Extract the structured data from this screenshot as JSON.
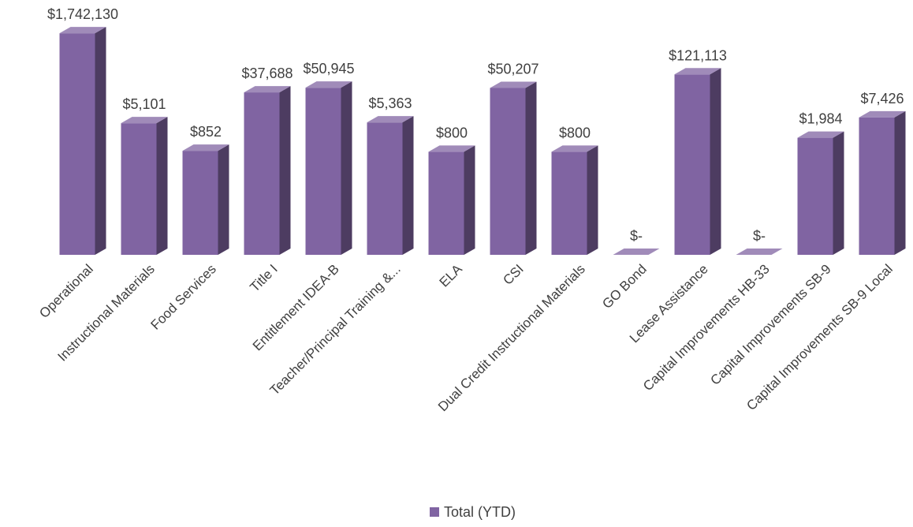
{
  "chart_data": {
    "type": "bar3d",
    "categories": [
      "Operational",
      "Instructional Materials",
      "Food Services",
      "Title I",
      "Entitlement IDEA-B",
      "Teacher/Principal Training &...",
      "ELA",
      "CSI",
      "Dual Credit Instructional Materials",
      "GO Bond",
      "Lease Assistance",
      "Capital Improvements HB-33",
      "Capital Improvements SB-9",
      "Capital Improvements SB-9 Local"
    ],
    "series": [
      {
        "name": "Total (YTD)",
        "color": "#8064a2",
        "values": [
          1742130,
          5101,
          852,
          37688,
          50945,
          5363,
          800,
          50207,
          800,
          0,
          121113,
          0,
          1984,
          7426
        ],
        "value_labels": [
          "$1,742,130",
          "$5,101",
          "$852",
          "$37,688",
          "$50,945",
          "$5,363",
          "$800",
          "$50,207",
          "$800",
          "$-",
          "$121,113",
          "$-",
          "$1,984",
          "$7,426"
        ]
      }
    ],
    "ylim": [
      1,
      10000000
    ],
    "log_scale": true,
    "legend": "bottom"
  }
}
